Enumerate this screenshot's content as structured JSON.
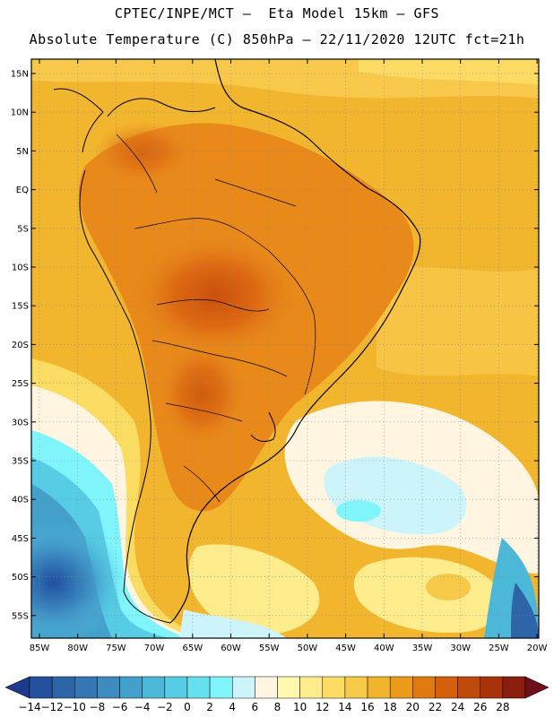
{
  "header": {
    "line1": "CPTEC/INPE/MCT –  Eta Model 15km – GFS",
    "line2": "Absolute Temperature (C) 850hPa – 22/11/2020 12UTC fct=21h"
  },
  "map": {
    "lat_labels": [
      "15N",
      "10N",
      "5N",
      "EQ",
      "5S",
      "10S",
      "15S",
      "20S",
      "25S",
      "30S",
      "35S",
      "40S",
      "45S",
      "50S",
      "55S"
    ],
    "lon_labels": [
      "85W",
      "80W",
      "75W",
      "70W",
      "65W",
      "60W",
      "55W",
      "50W",
      "45W",
      "40W",
      "35W",
      "30W",
      "25W",
      "20W"
    ]
  },
  "colorbar": {
    "labels": [
      "-14",
      "-12",
      "-10",
      "-8",
      "-6",
      "-4",
      "-2",
      "0",
      "2",
      "4",
      "6",
      "8",
      "10",
      "12",
      "14",
      "16",
      "18",
      "20",
      "22",
      "24",
      "26",
      "28"
    ],
    "colors": [
      "#1b3a8c",
      "#24519d",
      "#2e65a8",
      "#3677b3",
      "#3d8bbf",
      "#43a0cb",
      "#4cb8d8",
      "#56cde4",
      "#64e0ee",
      "#80f4fb",
      "#cdf4fb",
      "#fff5e0",
      "#fff9b0",
      "#fdec8c",
      "#fbdc63",
      "#f7c948",
      "#f2b42c",
      "#eb9a1a",
      "#e07a10",
      "#d45f0c",
      "#c04a0a",
      "#a8330a",
      "#8a1c10",
      "#6e1018"
    ]
  }
}
